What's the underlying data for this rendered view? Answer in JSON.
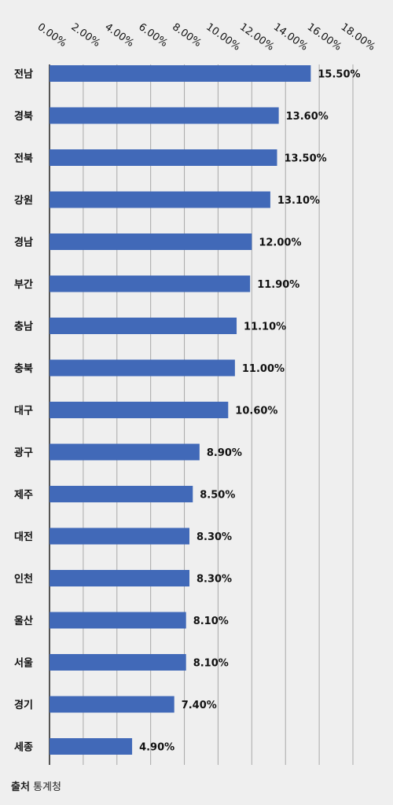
{
  "chart_data": {
    "type": "bar",
    "orientation": "horizontal",
    "title": "",
    "xlabel": "",
    "ylabel": "",
    "xlim": [
      0,
      18
    ],
    "x_ticks": [
      "0.00%",
      "2.00%",
      "4.00%",
      "6.00%",
      "8.00%",
      "10.00%",
      "12.00%",
      "14.00%",
      "16.00%",
      "18.00%"
    ],
    "grid": true,
    "bar_color": "#4169b8",
    "categories": [
      "전남",
      "경북",
      "전북",
      "강원",
      "경남",
      "부간",
      "충남",
      "충북",
      "대구",
      "광구",
      "제주",
      "대전",
      "인천",
      "울산",
      "서울",
      "경기",
      "세종"
    ],
    "values": [
      15.5,
      13.6,
      13.5,
      13.1,
      12.0,
      11.9,
      11.1,
      11.0,
      10.6,
      8.9,
      8.5,
      8.3,
      8.3,
      8.1,
      8.1,
      7.4,
      4.9
    ],
    "data_labels": [
      "15.50%",
      "13.60%",
      "13.50%",
      "13.10%",
      "12.00%",
      "11.90%",
      "11.10%",
      "11.00%",
      "10.60%",
      "8.90%",
      "8.50%",
      "8.30%",
      "8.30%",
      "8.10%",
      "8.10%",
      "7.40%",
      "4.90%"
    ]
  },
  "source": {
    "label": "출처",
    "value": "통계청"
  }
}
